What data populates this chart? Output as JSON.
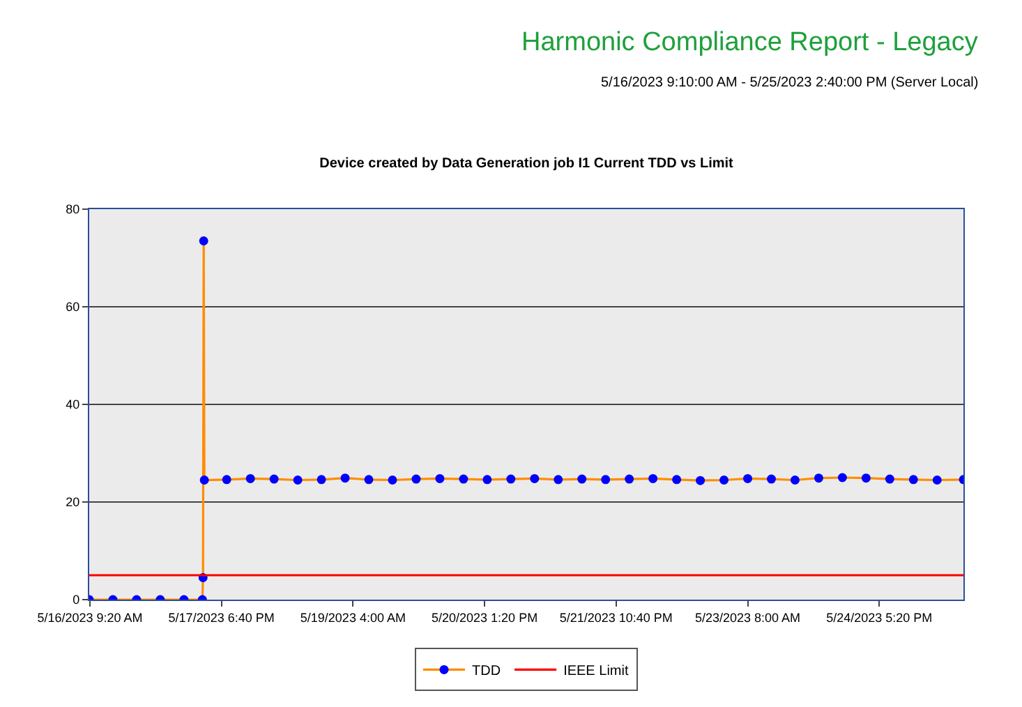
{
  "chart_data": {
    "type": "line",
    "title": "Device created by Data Generation job I1 Current TDD vs Limit",
    "annotations": [
      "Harmonic Compliance Report - Legacy",
      "5/16/2023 9:10:00 AM - 5/25/2023 2:40:00 PM (Server Local)"
    ],
    "xlim": [
      "2023-05-16T09:10",
      "2023-05-25T14:40"
    ],
    "xticks": [
      {
        "value": "2023-05-16T09:20",
        "label": "5/16/2023 9:20 AM"
      },
      {
        "value": "2023-05-17T18:40",
        "label": "5/17/2023 6:40 PM"
      },
      {
        "value": "2023-05-19T04:00",
        "label": "5/19/2023 4:00 AM"
      },
      {
        "value": "2023-05-20T13:20",
        "label": "5/20/2023 1:20 PM"
      },
      {
        "value": "2023-05-21T22:40",
        "label": "5/21/2023 10:40 PM"
      },
      {
        "value": "2023-05-23T08:00",
        "label": "5/23/2023 8:00 AM"
      },
      {
        "value": "2023-05-24T17:20",
        "label": "5/24/2023 5:20 PM"
      }
    ],
    "ylim": [
      0,
      80
    ],
    "yticks": [
      0,
      20,
      40,
      60,
      80
    ],
    "grid": "y",
    "legend": "bottom",
    "marker": "circle",
    "series": [
      {
        "name": "TDD",
        "color": "#ff8c00",
        "x": [
          "2023-05-16T09:10",
          "2023-05-16T15:10",
          "2023-05-16T21:10",
          "2023-05-17T03:10",
          "2023-05-17T09:10",
          "2023-05-17T13:50",
          "2023-05-17T14:00",
          "2023-05-17T14:10",
          "2023-05-17T14:20",
          "2023-05-17T20:00",
          "2023-05-18T02:00",
          "2023-05-18T08:00",
          "2023-05-18T14:00",
          "2023-05-18T20:00",
          "2023-05-19T02:00",
          "2023-05-19T08:00",
          "2023-05-19T14:00",
          "2023-05-19T20:00",
          "2023-05-20T02:00",
          "2023-05-20T08:00",
          "2023-05-20T14:00",
          "2023-05-20T20:00",
          "2023-05-21T02:00",
          "2023-05-21T08:00",
          "2023-05-21T14:00",
          "2023-05-21T20:00",
          "2023-05-22T02:00",
          "2023-05-22T08:00",
          "2023-05-22T14:00",
          "2023-05-22T20:00",
          "2023-05-23T02:00",
          "2023-05-23T08:00",
          "2023-05-23T14:00",
          "2023-05-23T20:00",
          "2023-05-24T02:00",
          "2023-05-24T08:00",
          "2023-05-24T14:00",
          "2023-05-24T20:00",
          "2023-05-25T02:00",
          "2023-05-25T08:00",
          "2023-05-25T14:40"
        ],
        "values": [
          0,
          0,
          0,
          0,
          0,
          0,
          4.5,
          73.5,
          24.5,
          24.6,
          24.8,
          24.7,
          24.5,
          24.6,
          24.9,
          24.6,
          24.5,
          24.7,
          24.8,
          24.7,
          24.6,
          24.7,
          24.8,
          24.6,
          24.7,
          24.6,
          24.7,
          24.8,
          24.6,
          24.4,
          24.5,
          24.8,
          24.7,
          24.5,
          24.9,
          25.0,
          24.9,
          24.7,
          24.6,
          24.5,
          24.6
        ],
        "colors": [
          "#0000ff",
          "#0000ff",
          "#0000ff",
          "#0000ff",
          "#0000ff",
          "#0000ff",
          "#0000ff",
          "#0000ff",
          "#0000ff",
          "#0000ff",
          "#0000ff",
          "#0000ff",
          "#0000ff",
          "#0000ff",
          "#0000ff",
          "#0000ff",
          "#0000ff",
          "#0000ff",
          "#0000ff",
          "#0000ff",
          "#0000ff",
          "#0000ff",
          "#0000ff",
          "#0000ff",
          "#0000ff",
          "#0000ff",
          "#0000ff",
          "#0000ff",
          "#0000ff",
          "#0000ff",
          "#0000ff",
          "#0000ff",
          "#0000ff",
          "#0000ff",
          "#0000ff",
          "#0000ff",
          "#0000ff",
          "#0000ff",
          "#0000ff",
          "#0000ff",
          "#0000ff"
        ]
      },
      {
        "name": "IEEE Limit",
        "color": "#ff0000",
        "marker": "none",
        "x": [
          "2023-05-16T09:10",
          "2023-05-25T14:40"
        ],
        "values": [
          5,
          5
        ]
      }
    ]
  }
}
